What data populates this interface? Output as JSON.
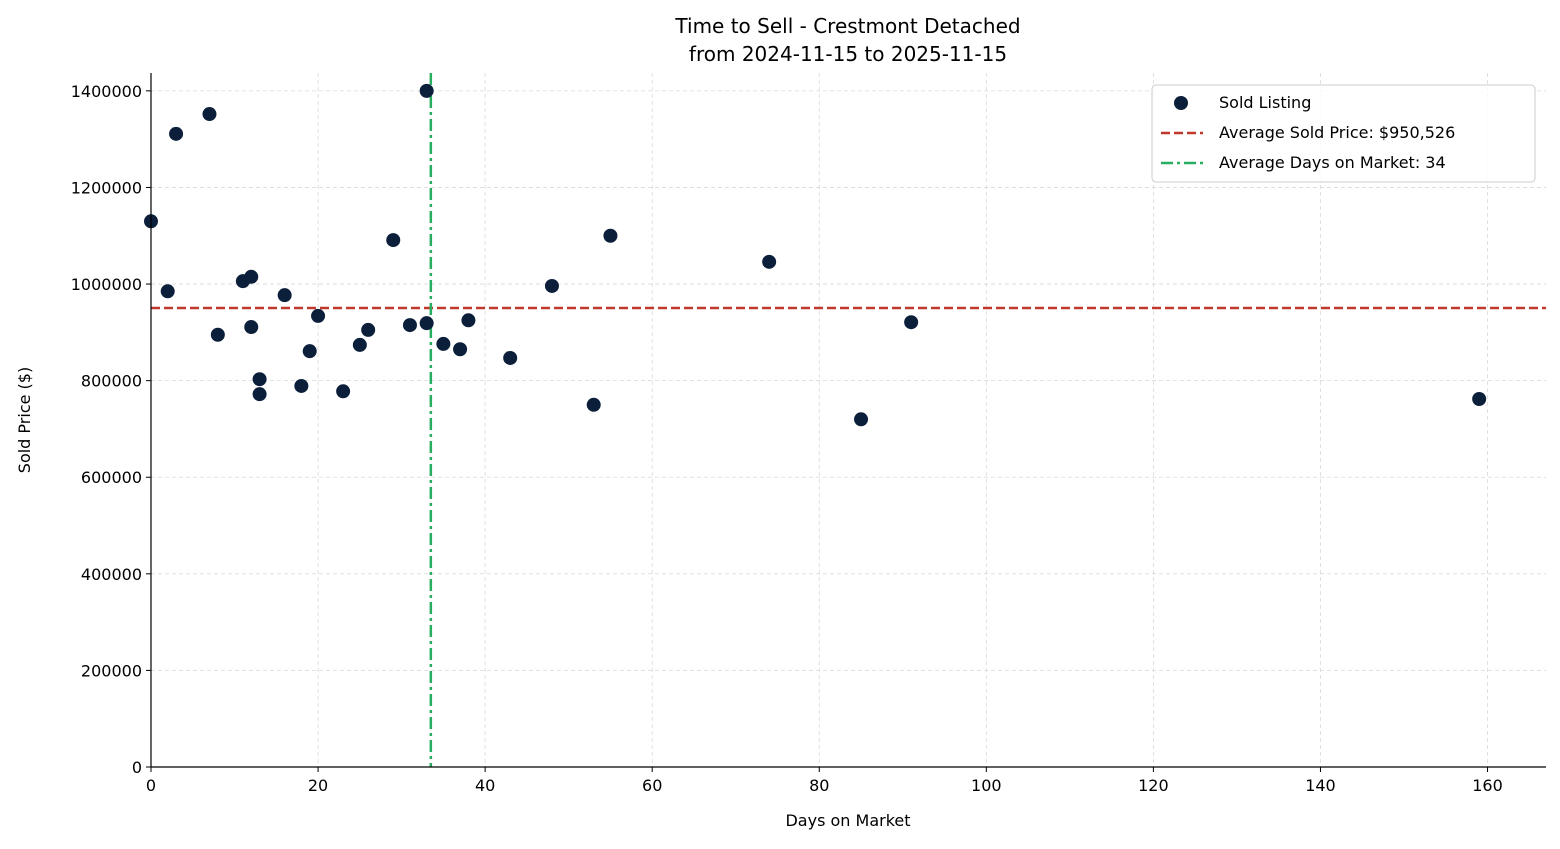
{
  "chart_data": {
    "type": "scatter",
    "title": "Time to Sell - Crestmont Detached",
    "subtitle": "from 2024-11-15 to 2025-11-15",
    "xlabel": "Days on Market",
    "ylabel": "Sold Price ($)",
    "xlim": [
      0,
      167
    ],
    "ylim": [
      0,
      1437000
    ],
    "xticks": [
      0,
      20,
      40,
      60,
      80,
      100,
      120,
      140,
      160
    ],
    "yticks": [
      0,
      200000,
      400000,
      600000,
      800000,
      1000000,
      1200000,
      1400000
    ],
    "grid": true,
    "legend_position": "top-right",
    "colors": {
      "points": "#0b1f3a",
      "avg_price": "#c0392b",
      "avg_days": "#27ae60",
      "grid": "#d9d9d9"
    },
    "series": [
      {
        "name": "Sold Listing",
        "points": [
          [
            0,
            1130000
          ],
          [
            2,
            985000
          ],
          [
            3,
            1311000
          ],
          [
            7,
            1352000
          ],
          [
            8,
            895000
          ],
          [
            11,
            1006000
          ],
          [
            12,
            1015000
          ],
          [
            12,
            911000
          ],
          [
            13,
            803000
          ],
          [
            13,
            772000
          ],
          [
            16,
            977000
          ],
          [
            18,
            789000
          ],
          [
            19,
            861000
          ],
          [
            20,
            934000
          ],
          [
            23,
            778000
          ],
          [
            25,
            874000
          ],
          [
            26,
            905000
          ],
          [
            29,
            1091000
          ],
          [
            31,
            915000
          ],
          [
            33,
            919000
          ],
          [
            33,
            1400000
          ],
          [
            35,
            876000
          ],
          [
            37,
            865000
          ],
          [
            38,
            925000
          ],
          [
            43,
            847000
          ],
          [
            48,
            996000
          ],
          [
            53,
            750000
          ],
          [
            55,
            1100000
          ],
          [
            74,
            1046000
          ],
          [
            85,
            720000
          ],
          [
            91,
            921000
          ],
          [
            159,
            762000
          ]
        ]
      }
    ],
    "reference_lines": [
      {
        "name": "Average Sold Price: $950,526",
        "orientation": "horizontal",
        "value": 950526,
        "style": "dashed"
      },
      {
        "name": "Average Days on Market: 34",
        "orientation": "vertical",
        "value": 33.5,
        "style": "dashdot"
      }
    ]
  }
}
